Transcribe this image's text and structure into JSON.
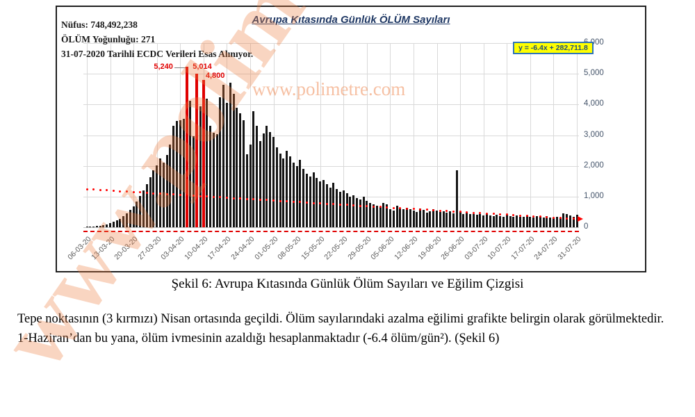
{
  "page": {
    "watermark": "www.polimetre.com",
    "caption": "Şekil 6: Avrupa Kıtasında Günlük Ölüm Sayıları ve Eğilim Çizgisi",
    "body_paragraphs": [
      "Tepe noktasının (3 kırmızı) Nisan ortasında geçildi. Ölüm sayılarındaki azalma eğilimi grafikte belirgin olarak görülmektedir.",
      "1-Haziran’dan bu yana, ölüm ivmesinin azaldığı hesaplanmaktadır (-6.4 ölüm/gün²). (Şekil 6)"
    ]
  },
  "chart": {
    "title": "Avrupa Kıtasında Günlük ÖLÜM Sayıları",
    "info_lines": [
      "Nüfus: 748,492,238",
      "ÖLÜM Yoğunluğu: 271",
      "31-07-2020 Tarihli ECDC Verileri Esas Alınıyor."
    ],
    "equation_label": "y = -6.4x + 282,711.8"
  },
  "chart_data": {
    "type": "bar",
    "title": "Avrupa Kıtasında Günlük ÖLÜM Sayıları",
    "xlabel": "",
    "ylabel": "",
    "ylim": [
      0,
      6000
    ],
    "grid": true,
    "y_axis_side": "right",
    "legend": "none",
    "bar_color": "#141414",
    "highlight_color": "#E00000",
    "y_ticks": [
      "0",
      "1,000",
      "2,000",
      "3,000",
      "4,000",
      "5,000",
      "6,000"
    ],
    "x_tick_labels": [
      "06-03-20",
      "13-03-20",
      "20-03-20",
      "27-03-20",
      "03-04-20",
      "10-04-20",
      "17-04-20",
      "24-04-20",
      "01-05-20",
      "08-05-20",
      "15-05-20",
      "22-05-20",
      "29-05-20",
      "05-06-20",
      "12-06-20",
      "19-06-20",
      "26-06-20",
      "03-07-20",
      "10-07-20",
      "17-07-20",
      "24-07-20",
      "31-07-20"
    ],
    "x": [
      "06-03-20",
      "07-03-20",
      "08-03-20",
      "09-03-20",
      "10-03-20",
      "11-03-20",
      "12-03-20",
      "13-03-20",
      "14-03-20",
      "15-03-20",
      "16-03-20",
      "17-03-20",
      "18-03-20",
      "19-03-20",
      "20-03-20",
      "21-03-20",
      "22-03-20",
      "23-03-20",
      "24-03-20",
      "25-03-20",
      "26-03-20",
      "27-03-20",
      "28-03-20",
      "29-03-20",
      "30-03-20",
      "31-03-20",
      "01-04-20",
      "02-04-20",
      "03-04-20",
      "04-04-20",
      "05-04-20",
      "06-04-20",
      "07-04-20",
      "08-04-20",
      "09-04-20",
      "10-04-20",
      "11-04-20",
      "12-04-20",
      "13-04-20",
      "14-04-20",
      "15-04-20",
      "16-04-20",
      "17-04-20",
      "18-04-20",
      "19-04-20",
      "20-04-20",
      "21-04-20",
      "22-04-20",
      "23-04-20",
      "24-04-20",
      "25-04-20",
      "26-04-20",
      "27-04-20",
      "28-04-20",
      "29-04-20",
      "30-04-20",
      "01-05-20",
      "02-05-20",
      "03-05-20",
      "04-05-20",
      "05-05-20",
      "06-05-20",
      "07-05-20",
      "08-05-20",
      "09-05-20",
      "10-05-20",
      "11-05-20",
      "12-05-20",
      "13-05-20",
      "14-05-20",
      "15-05-20",
      "16-05-20",
      "17-05-20",
      "18-05-20",
      "19-05-20",
      "20-05-20",
      "21-05-20",
      "22-05-20",
      "23-05-20",
      "24-05-20",
      "25-05-20",
      "26-05-20",
      "27-05-20",
      "28-05-20",
      "29-05-20",
      "30-05-20",
      "31-05-20",
      "01-06-20",
      "02-06-20",
      "03-06-20",
      "04-06-20",
      "05-06-20",
      "06-06-20",
      "07-06-20",
      "08-06-20",
      "09-06-20",
      "10-06-20",
      "11-06-20",
      "12-06-20",
      "13-06-20",
      "14-06-20",
      "15-06-20",
      "16-06-20",
      "17-06-20",
      "18-06-20",
      "19-06-20",
      "20-06-20",
      "21-06-20",
      "22-06-20",
      "23-06-20",
      "24-06-20",
      "25-06-20",
      "26-06-20",
      "27-06-20",
      "28-06-20",
      "29-06-20",
      "30-06-20",
      "01-07-20",
      "02-07-20",
      "03-07-20",
      "04-07-20",
      "05-07-20",
      "06-07-20",
      "07-07-20",
      "08-07-20",
      "09-07-20",
      "10-07-20",
      "11-07-20",
      "12-07-20",
      "13-07-20",
      "14-07-20",
      "15-07-20",
      "16-07-20",
      "17-07-20",
      "18-07-20",
      "19-07-20",
      "20-07-20",
      "21-07-20",
      "22-07-20",
      "23-07-20",
      "24-07-20",
      "25-07-20",
      "26-07-20",
      "27-07-20",
      "28-07-20",
      "29-07-20",
      "30-07-20",
      "31-07-20"
    ],
    "values": [
      20,
      25,
      30,
      40,
      55,
      75,
      100,
      130,
      170,
      220,
      280,
      360,
      450,
      560,
      690,
      840,
      1010,
      1200,
      1400,
      1620,
      1850,
      2020,
      2250,
      2100,
      2350,
      2700,
      3300,
      3460,
      3490,
      3530,
      5240,
      4130,
      2970,
      5014,
      3940,
      4800,
      4200,
      3300,
      3080,
      3040,
      4240,
      4650,
      4050,
      4700,
      4350,
      3900,
      3715,
      3490,
      2370,
      2700,
      3790,
      3300,
      2800,
      3050,
      3300,
      3100,
      2950,
      2600,
      2400,
      2250,
      2500,
      2300,
      2100,
      2000,
      2200,
      1900,
      1750,
      1650,
      1800,
      1600,
      1500,
      1550,
      1400,
      1300,
      1450,
      1250,
      1150,
      1200,
      1100,
      1000,
      1050,
      950,
      900,
      1000,
      850,
      800,
      750,
      700,
      650,
      800,
      750,
      600,
      550,
      700,
      620,
      580,
      640,
      600,
      550,
      500,
      620,
      560,
      480,
      520,
      580,
      540,
      490,
      530,
      470,
      510,
      450,
      1850,
      490,
      430,
      470,
      420,
      440,
      400,
      420,
      380,
      430,
      390,
      360,
      410,
      370,
      350,
      400,
      360,
      340,
      390,
      350,
      330,
      380,
      340,
      320,
      370,
      330,
      310,
      360,
      320,
      300,
      350,
      310,
      450,
      420,
      380,
      350,
      400
    ],
    "red_indices": [
      30,
      33,
      35
    ],
    "peak_labels": [
      {
        "text": "5,240",
        "index": 30,
        "placement": "left"
      },
      {
        "text": "5,014",
        "index": 33,
        "placement": "above"
      },
      {
        "text": "4,800",
        "index": 35,
        "placement": "right"
      }
    ],
    "trend": {
      "style": "dotted",
      "color": "#FF0000",
      "start_value": 1240,
      "end_value": 270,
      "equation": "y = -6.4x + 282,711.8",
      "arrow_end": true
    },
    "baseline_dashed_red": true
  }
}
